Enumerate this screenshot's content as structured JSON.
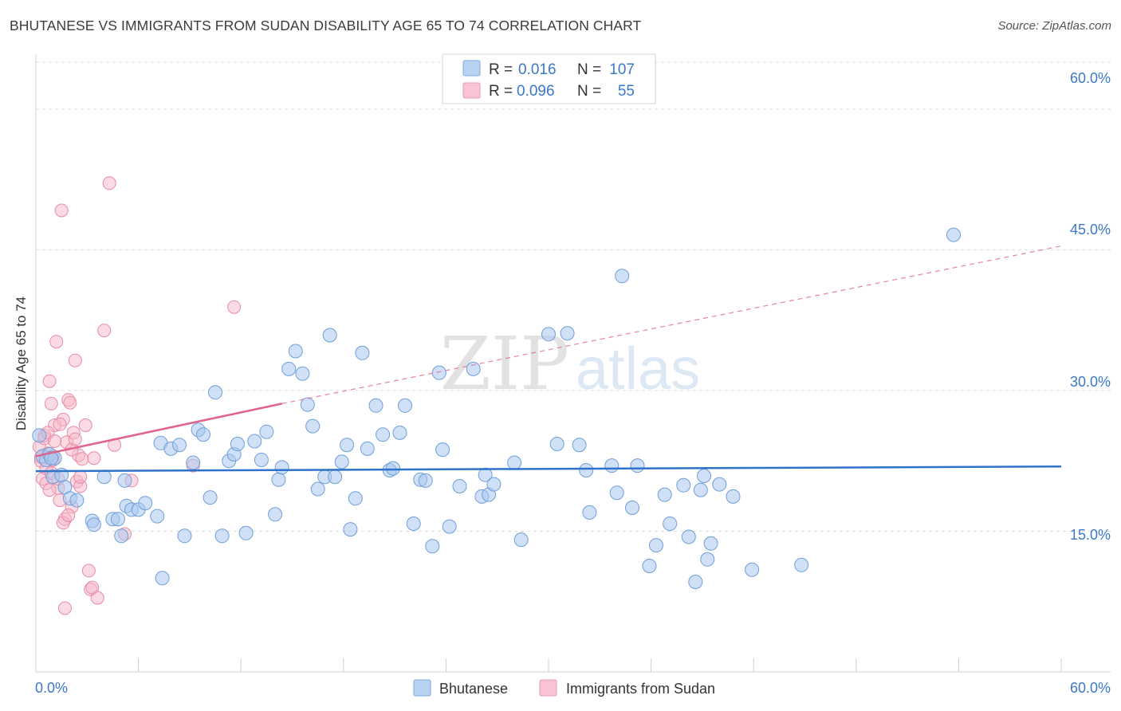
{
  "chart_data": {
    "type": "scatter",
    "title": "BHUTANESE VS IMMIGRANTS FROM SUDAN DISABILITY AGE 65 TO 74 CORRELATION CHART",
    "source": "Source: ZipAtlas.com",
    "xlabel": "",
    "ylabel": "Disability Age 65 to 74",
    "xlim": [
      0,
      60
    ],
    "ylim": [
      0,
      65
    ],
    "x_tick_labels": [
      "0.0%",
      "60.0%"
    ],
    "y_ticks": [
      15,
      30,
      45,
      60
    ],
    "y_tick_labels": [
      "15.0%",
      "30.0%",
      "45.0%",
      "60.0%"
    ],
    "grid": true,
    "watermark": {
      "zip": "ZIP",
      "atlas": "atlas"
    },
    "colors": {
      "blue_fill": "#a9c8f0",
      "blue_stroke": "#6f9fd8",
      "blue_line": "#2e72c9",
      "pink_fill": "#f6b8c9",
      "pink_stroke": "#e98aa6",
      "pink_line": "#e0638b",
      "axis_text": "#3a78c9",
      "grid": "#dddddd"
    },
    "legend": {
      "r_label": "R =",
      "n_label": "N =",
      "items": [
        {
          "r_value": "0.016",
          "n_value": "107"
        },
        {
          "r_value": "0.096",
          "n_value": "55"
        }
      ]
    },
    "series": [
      {
        "name": "Bhutanese",
        "color": "#a9c8f0",
        "trend": {
          "x": [
            0,
            60
          ],
          "y": [
            21.4,
            21.9
          ],
          "dashed_to": null
        },
        "points": [
          [
            0.4,
            23.0
          ],
          [
            0.6,
            22.6
          ],
          [
            0.8,
            23.2
          ],
          [
            1.0,
            20.8
          ],
          [
            1.1,
            22.8
          ],
          [
            1.5,
            21.0
          ],
          [
            1.7,
            19.7
          ],
          [
            2.0,
            18.5
          ],
          [
            2.4,
            18.3
          ],
          [
            3.3,
            16.1
          ],
          [
            3.4,
            15.7
          ],
          [
            4.0,
            20.8
          ],
          [
            4.5,
            16.3
          ],
          [
            4.8,
            16.3
          ],
          [
            5.0,
            14.5
          ],
          [
            5.2,
            20.4
          ],
          [
            5.3,
            17.7
          ],
          [
            5.6,
            17.3
          ],
          [
            6.0,
            17.3
          ],
          [
            6.4,
            18.0
          ],
          [
            7.1,
            16.6
          ],
          [
            7.3,
            24.4
          ],
          [
            7.4,
            10.0
          ],
          [
            7.9,
            23.8
          ],
          [
            8.4,
            24.2
          ],
          [
            8.7,
            14.5
          ],
          [
            9.2,
            22.3
          ],
          [
            9.5,
            25.8
          ],
          [
            9.8,
            25.3
          ],
          [
            10.2,
            18.6
          ],
          [
            10.5,
            29.8
          ],
          [
            10.9,
            14.5
          ],
          [
            11.3,
            22.5
          ],
          [
            11.6,
            23.2
          ],
          [
            11.8,
            24.3
          ],
          [
            12.3,
            14.8
          ],
          [
            12.8,
            24.6
          ],
          [
            13.2,
            22.6
          ],
          [
            13.5,
            25.6
          ],
          [
            14.0,
            16.8
          ],
          [
            14.2,
            20.5
          ],
          [
            14.4,
            21.8
          ],
          [
            14.8,
            32.3
          ],
          [
            15.2,
            34.2
          ],
          [
            15.6,
            31.8
          ],
          [
            15.9,
            28.5
          ],
          [
            16.2,
            26.2
          ],
          [
            16.5,
            19.5
          ],
          [
            16.9,
            20.8
          ],
          [
            17.2,
            35.9
          ],
          [
            17.5,
            20.8
          ],
          [
            17.9,
            22.4
          ],
          [
            18.2,
            24.2
          ],
          [
            18.4,
            15.2
          ],
          [
            18.7,
            18.5
          ],
          [
            19.1,
            34.0
          ],
          [
            19.4,
            23.8
          ],
          [
            19.9,
            28.4
          ],
          [
            20.3,
            25.3
          ],
          [
            20.7,
            21.5
          ],
          [
            20.9,
            21.7
          ],
          [
            21.3,
            25.5
          ],
          [
            21.6,
            28.4
          ],
          [
            22.1,
            15.8
          ],
          [
            22.5,
            20.5
          ],
          [
            22.8,
            20.4
          ],
          [
            23.2,
            13.4
          ],
          [
            23.6,
            31.9
          ],
          [
            23.8,
            23.7
          ],
          [
            24.2,
            15.5
          ],
          [
            24.8,
            19.8
          ],
          [
            25.6,
            32.3
          ],
          [
            26.1,
            18.7
          ],
          [
            26.3,
            21.0
          ],
          [
            26.5,
            18.9
          ],
          [
            26.8,
            20.0
          ],
          [
            28.0,
            22.3
          ],
          [
            28.4,
            14.1
          ],
          [
            30.0,
            36.0
          ],
          [
            30.5,
            24.3
          ],
          [
            31.1,
            36.1
          ],
          [
            31.8,
            24.2
          ],
          [
            32.2,
            21.5
          ],
          [
            32.4,
            17.0
          ],
          [
            33.7,
            22.0
          ],
          [
            34.0,
            19.1
          ],
          [
            34.3,
            42.2
          ],
          [
            34.9,
            17.5
          ],
          [
            35.2,
            22.0
          ],
          [
            35.9,
            11.3
          ],
          [
            36.3,
            13.5
          ],
          [
            36.8,
            18.9
          ],
          [
            37.1,
            15.8
          ],
          [
            37.9,
            19.9
          ],
          [
            38.2,
            14.4
          ],
          [
            38.6,
            9.6
          ],
          [
            38.9,
            19.4
          ],
          [
            39.1,
            20.9
          ],
          [
            39.3,
            12.0
          ],
          [
            39.5,
            13.7
          ],
          [
            40.0,
            20.0
          ],
          [
            40.8,
            18.7
          ],
          [
            41.9,
            10.9
          ],
          [
            44.8,
            11.4
          ],
          [
            53.7,
            46.6
          ],
          [
            0.2,
            25.2
          ],
          [
            0.9,
            22.8
          ]
        ]
      },
      {
        "name": "Immigrants from Sudan",
        "color": "#f6b8c9",
        "trend": {
          "x": [
            0,
            14.4
          ],
          "y": [
            23.0,
            28.6
          ],
          "dashed_to": [
            60,
            45.4
          ]
        },
        "points": [
          [
            0.2,
            24.0
          ],
          [
            0.3,
            22.5
          ],
          [
            0.4,
            20.6
          ],
          [
            0.5,
            25.2
          ],
          [
            0.6,
            21.7
          ],
          [
            0.7,
            23.3
          ],
          [
            0.8,
            31.0
          ],
          [
            0.9,
            28.6
          ],
          [
            1.0,
            23.0
          ],
          [
            1.1,
            26.3
          ],
          [
            1.2,
            35.2
          ],
          [
            1.3,
            19.6
          ],
          [
            1.4,
            18.3
          ],
          [
            1.5,
            49.2
          ],
          [
            1.6,
            26.9
          ],
          [
            1.7,
            16.3
          ],
          [
            1.8,
            24.5
          ],
          [
            1.9,
            29.0
          ],
          [
            2.0,
            28.7
          ],
          [
            2.1,
            17.6
          ],
          [
            2.2,
            25.5
          ],
          [
            2.3,
            33.2
          ],
          [
            2.4,
            20.3
          ],
          [
            2.5,
            23.1
          ],
          [
            2.6,
            19.8
          ],
          [
            2.7,
            22.7
          ],
          [
            2.9,
            26.3
          ],
          [
            3.1,
            10.8
          ],
          [
            3.2,
            8.8
          ],
          [
            3.3,
            9.0
          ],
          [
            3.4,
            22.8
          ],
          [
            3.6,
            7.9
          ],
          [
            4.0,
            36.4
          ],
          [
            4.3,
            52.1
          ],
          [
            4.6,
            24.2
          ],
          [
            5.2,
            14.7
          ],
          [
            5.6,
            20.4
          ],
          [
            9.2,
            22.0
          ],
          [
            11.6,
            38.9
          ],
          [
            0.3,
            22.9
          ],
          [
            0.5,
            24.9
          ],
          [
            0.6,
            20.1
          ],
          [
            0.7,
            25.5
          ],
          [
            0.8,
            19.4
          ],
          [
            0.9,
            21.2
          ],
          [
            1.0,
            22.6
          ],
          [
            1.1,
            24.6
          ],
          [
            1.3,
            20.6
          ],
          [
            1.4,
            26.4
          ],
          [
            1.6,
            15.9
          ],
          [
            1.7,
            6.8
          ],
          [
            1.9,
            16.7
          ],
          [
            2.1,
            23.7
          ],
          [
            2.3,
            24.8
          ],
          [
            2.6,
            20.8
          ]
        ]
      }
    ]
  }
}
